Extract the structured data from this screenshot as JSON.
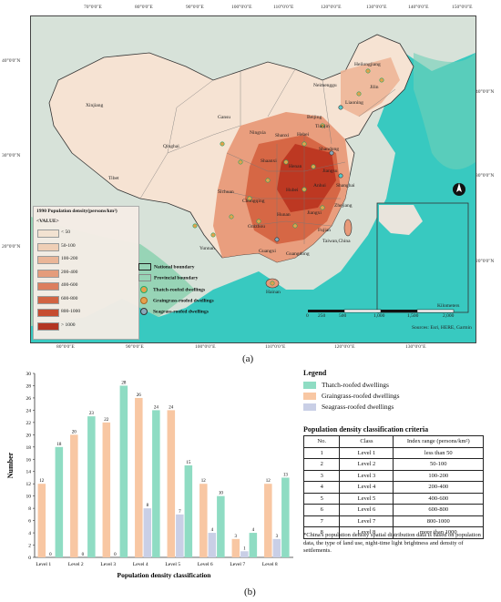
{
  "map": {
    "coords_top": [
      "70°0'0\"E",
      "80°0'0\"E",
      "90°0'0\"E",
      "100°0'0\"E",
      "110°0'0\"E",
      "120°0'0\"E",
      "130°0'0\"E",
      "140°0'0\"E",
      "150°0'0\"E"
    ],
    "coords_bottom": [
      "80°0'0\"E",
      "90°0'0\"E",
      "100°0'0\"E",
      "110°0'0\"E",
      "120°0'0\"E",
      "130°0'0\"E"
    ],
    "coords_left": [
      "40°0'0\"N",
      "30°0'0\"N",
      "20°0'0\"N"
    ],
    "coords_right": [
      "40°0'0\"N",
      "30°0'0\"N",
      "20°0'0\"N"
    ],
    "legend_title": "1990 Population density(persons/km²)",
    "legend_value_header": "<VALUE>",
    "classes": [
      {
        "label": "< 50",
        "color": "#f6e3d3"
      },
      {
        "label": "50-100",
        "color": "#f3cfb6"
      },
      {
        "label": "100-200",
        "color": "#eeb597"
      },
      {
        "label": "200-400",
        "color": "#e89a79"
      },
      {
        "label": "400-600",
        "color": "#df7b5b"
      },
      {
        "label": "600-800",
        "color": "#d4603f"
      },
      {
        "label": "800-1000",
        "color": "#c8472b"
      },
      {
        "label": "> 1000",
        "color": "#b8301c"
      }
    ],
    "boundary_legend": {
      "national": "National boundary",
      "provincial": "Provincial boundary",
      "thatch": "Thatch-roofed dwellings",
      "graingrass": "Graingrass-roofed dwellings",
      "seagrass": "Seagrass-roofed dwellings"
    },
    "place_labels": [
      "Heilongjiang",
      "Jilin",
      "Neimenggu",
      "Liaoning",
      "Xinjiang",
      "Gansu",
      "Ningxia",
      "Beijing",
      "Tianjin",
      "Hebei",
      "Shanxi",
      "Shandong",
      "Qinghai",
      "Shaanxi",
      "Henan",
      "Jiangsu",
      "Tibet",
      "Sichuan",
      "Chongqing",
      "Hubei",
      "Anhui",
      "Shanghai",
      "Zhejiang",
      "Hunan",
      "Jiangxi",
      "Guizhou",
      "Yunnan",
      "Guangxi",
      "Guangdong",
      "Fujian",
      "Taiwan,China",
      "Hainan"
    ],
    "scale_labels": [
      "0",
      "250",
      "500",
      "1,000",
      "1,500",
      "2,000"
    ],
    "scale_unit": "Kilometers",
    "source": "Sources: Esri, HERE, Garmin"
  },
  "panel_a_label": "(a)",
  "panel_b_label": "(b)",
  "chart_data": {
    "type": "bar",
    "categories": [
      "Level 1",
      "Level 2",
      "Level 3",
      "Level 4",
      "Level 5",
      "Level 6",
      "Level 7",
      "Level 8"
    ],
    "series": [
      {
        "name": "Thatch-roofed dwellings",
        "color": "#8fdcc3",
        "values": [
          18,
          23,
          28,
          24,
          15,
          10,
          4,
          13
        ]
      },
      {
        "name": "Graingrass-roofed dwellings",
        "color": "#f8c7a3",
        "values": [
          12,
          20,
          22,
          26,
          24,
          12,
          3,
          12
        ]
      },
      {
        "name": "Seagrass-roofed dwellings",
        "color": "#c9cfe6",
        "values": [
          0,
          0,
          0,
          8,
          7,
          4,
          1,
          3
        ]
      }
    ],
    "order": [
      "Graingrass-roofed dwellings",
      "Seagrass-roofed dwellings",
      "Thatch-roofed dwellings"
    ],
    "xlabel": "Population density classification",
    "ylabel": "Number",
    "ylim": [
      0,
      30
    ],
    "yticks": [
      0,
      2,
      4,
      6,
      8,
      10,
      12,
      14,
      16,
      18,
      20,
      22,
      24,
      26,
      28,
      30
    ],
    "grid": false
  },
  "chart_legend": {
    "title": "Legend",
    "items": [
      {
        "label": "Thatch-roofed dwellings",
        "color": "#8fdcc3"
      },
      {
        "label": "Graingrass-roofed dwellings",
        "color": "#f8c7a3"
      },
      {
        "label": "Seagrass-roofed dwellings",
        "color": "#c9cfe6"
      }
    ]
  },
  "criteria": {
    "title": "Population density classification criteria",
    "headers": [
      "No.",
      "Class",
      "Index range (persons/km²)"
    ],
    "rows": [
      [
        "1",
        "Level 1",
        "less than 50"
      ],
      [
        "2",
        "Level 2",
        "50-100"
      ],
      [
        "3",
        "Level 3",
        "100-200"
      ],
      [
        "4",
        "Level 4",
        "200-400"
      ],
      [
        "5",
        "Level 5",
        "400-600"
      ],
      [
        "6",
        "Level 6",
        "600-800"
      ],
      [
        "7",
        "Level 7",
        "800-1000"
      ],
      [
        "8",
        "Level 8",
        "more than 1000"
      ]
    ]
  },
  "note": "*China's population density spatial distribution data is based on population data, the type of land use, night-time light brightness and density of settlements."
}
